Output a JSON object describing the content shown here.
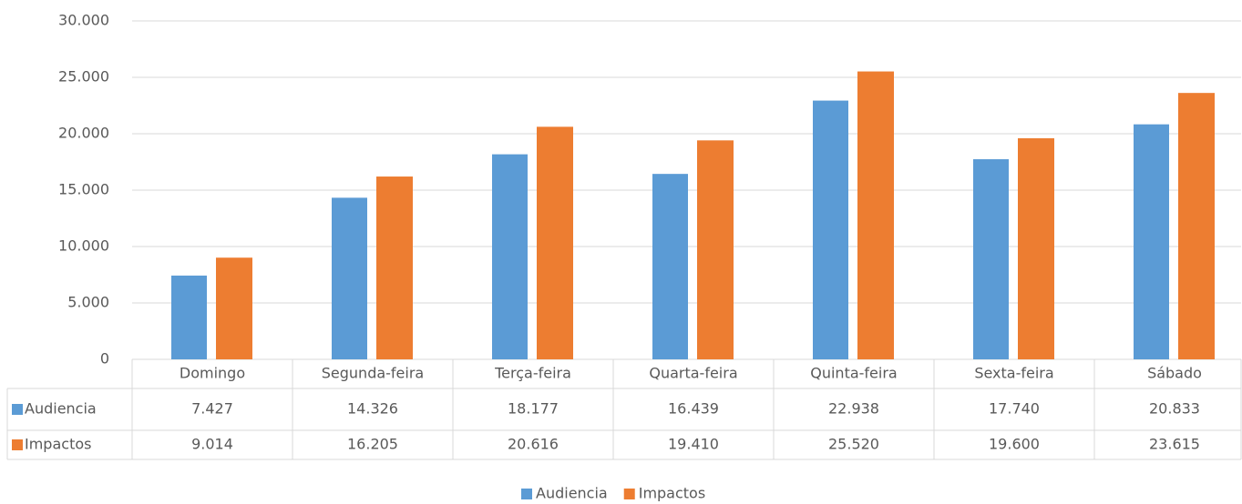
{
  "chart_data": {
    "type": "bar",
    "categories": [
      "Domingo",
      "Segunda-feira",
      "Terça-feira",
      "Quarta-feira",
      "Quinta-feira",
      "Sexta-feira",
      "Sábado"
    ],
    "series": [
      {
        "name": "Audiencia",
        "color": "#5b9bd5",
        "values": [
          7427,
          14326,
          18177,
          16439,
          22938,
          17740,
          20833
        ],
        "value_labels": [
          "7.427",
          "14.326",
          "18.177",
          "16.439",
          "22.938",
          "17.740",
          "20.833"
        ]
      },
      {
        "name": "Impactos",
        "color": "#ed7d31",
        "values": [
          9014,
          16205,
          20616,
          19410,
          25520,
          19600,
          23615
        ],
        "value_labels": [
          "9.014",
          "16.205",
          "20.616",
          "19.410",
          "25.520",
          "19.600",
          "23.615"
        ]
      }
    ],
    "ylim": [
      0,
      30000
    ],
    "yticks": [
      0,
      {
        "value": 5000,
        "label": "5.000"
      },
      {
        "value": 10000,
        "label": "10.000"
      },
      {
        "value": 15000,
        "label": "15.000"
      },
      {
        "value": 20000,
        "label": "20.000"
      },
      {
        "value": 25000,
        "label": "25.000"
      },
      {
        "value": 30000,
        "label": "30.000"
      }
    ],
    "grid": true,
    "legend": "bottom",
    "data_table": true
  }
}
